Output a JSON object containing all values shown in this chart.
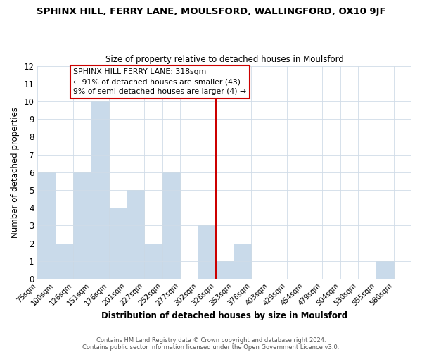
{
  "title": "SPHINX HILL, FERRY LANE, MOULSFORD, WALLINGFORD, OX10 9JF",
  "subtitle": "Size of property relative to detached houses in Moulsford",
  "xlabel": "Distribution of detached houses by size in Moulsford",
  "ylabel": "Number of detached properties",
  "bar_color": "#c9daea",
  "bar_edge_color": "#aac4d8",
  "bin_labels": [
    "75sqm",
    "100sqm",
    "126sqm",
    "151sqm",
    "176sqm",
    "201sqm",
    "227sqm",
    "252sqm",
    "277sqm",
    "302sqm",
    "328sqm",
    "353sqm",
    "378sqm",
    "403sqm",
    "429sqm",
    "454sqm",
    "479sqm",
    "504sqm",
    "530sqm",
    "555sqm",
    "580sqm"
  ],
  "bar_heights": [
    6,
    2,
    6,
    10,
    4,
    5,
    2,
    6,
    0,
    3,
    1,
    2,
    0,
    0,
    0,
    0,
    0,
    0,
    0,
    1,
    0
  ],
  "vline_position": 10,
  "vline_color": "#cc0000",
  "ylim": [
    0,
    12
  ],
  "yticks": [
    0,
    1,
    2,
    3,
    4,
    5,
    6,
    7,
    8,
    9,
    10,
    11,
    12
  ],
  "annotation_title": "SPHINX HILL FERRY LANE: 318sqm",
  "annotation_line1": "← 91% of detached houses are smaller (43)",
  "annotation_line2": "9% of semi-detached houses are larger (4) →",
  "footer_line1": "Contains HM Land Registry data © Crown copyright and database right 2024.",
  "footer_line2": "Contains public sector information licensed under the Open Government Licence v3.0.",
  "background_color": "#ffffff",
  "grid_color": "#d0dce8"
}
